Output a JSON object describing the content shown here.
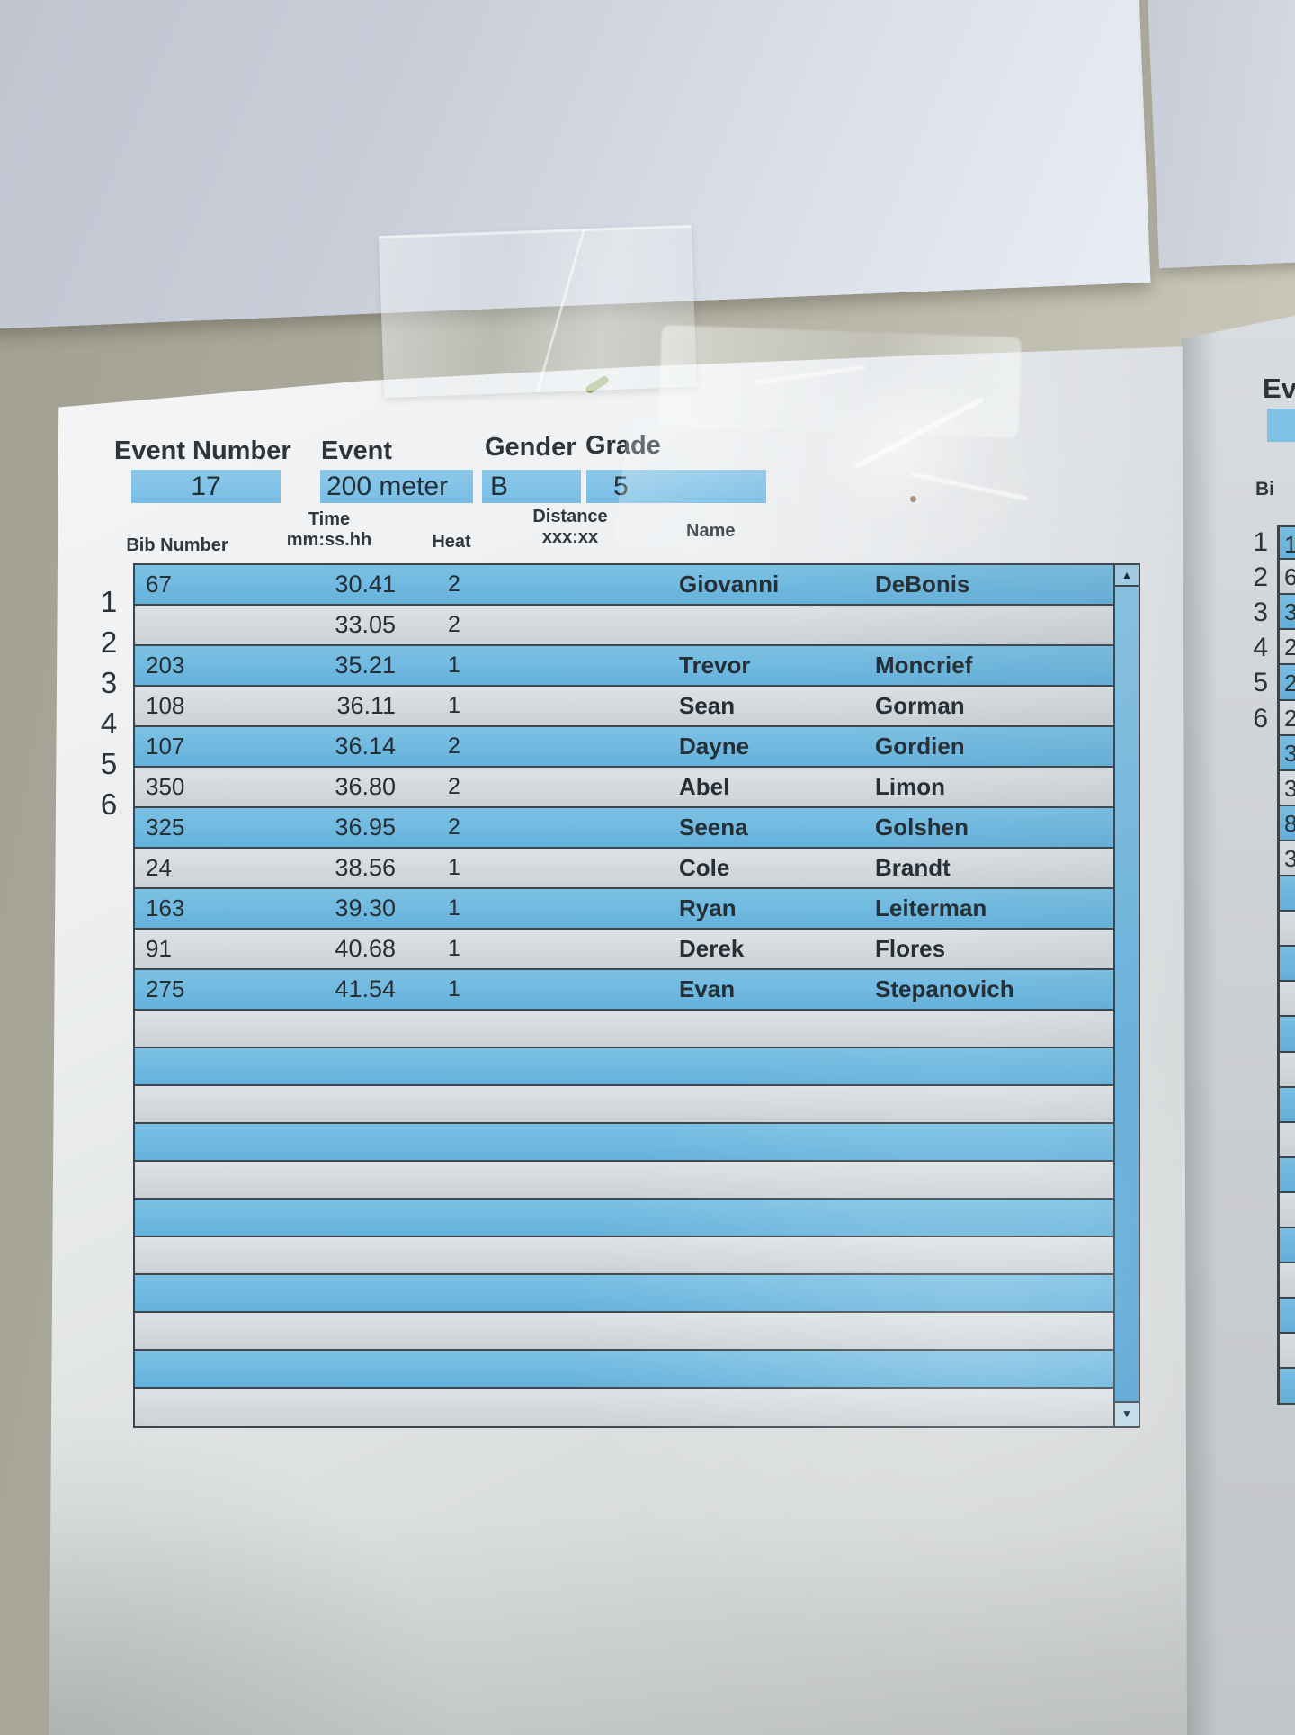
{
  "header": {
    "event_number_label": "Event Number",
    "event_number_value": "17",
    "event_label": "Event",
    "event_value": "200 meter",
    "gender_label": "Gender",
    "gender_value": "B",
    "grade_label": "Grade",
    "grade_value": "5"
  },
  "columns": {
    "bib": "Bib Number",
    "time_line1": "Time",
    "time_line2": "mm:ss.hh",
    "heat": "Heat",
    "distance_line1": "Distance",
    "distance_line2": "xxx:xx",
    "name": "Name"
  },
  "table": {
    "gutter_numbers": [
      "1",
      "2",
      "3",
      "4",
      "5",
      "6"
    ],
    "rows": [
      {
        "bib": "67",
        "time": "30.41",
        "heat": "2",
        "first": "Giovanni",
        "last": "DeBonis",
        "shade": "blue"
      },
      {
        "bib": "",
        "time": "33.05",
        "heat": "2",
        "first": "",
        "last": "",
        "shade": "white"
      },
      {
        "bib": "203",
        "time": "35.21",
        "heat": "1",
        "first": "Trevor",
        "last": "Moncrief",
        "shade": "blue"
      },
      {
        "bib": "108",
        "time": "36.11",
        "heat": "1",
        "first": "Sean",
        "last": "Gorman",
        "shade": "white"
      },
      {
        "bib": "107",
        "time": "36.14",
        "heat": "2",
        "first": "Dayne",
        "last": "Gordien",
        "shade": "blue"
      },
      {
        "bib": "350",
        "time": "36.80",
        "heat": "2",
        "first": "Abel",
        "last": "Limon",
        "shade": "white"
      },
      {
        "bib": "325",
        "time": "36.95",
        "heat": "2",
        "first": "Seena",
        "last": "Golshen",
        "shade": "blue"
      },
      {
        "bib": "24",
        "time": "38.56",
        "heat": "1",
        "first": "Cole",
        "last": "Brandt",
        "shade": "white"
      },
      {
        "bib": "163",
        "time": "39.30",
        "heat": "1",
        "first": "Ryan",
        "last": "Leiterman",
        "shade": "blue"
      },
      {
        "bib": "91",
        "time": "40.68",
        "heat": "1",
        "first": "Derek",
        "last": "Flores",
        "shade": "white"
      },
      {
        "bib": "275",
        "time": "41.54",
        "heat": "1",
        "first": "Evan",
        "last": "Stepanovich",
        "shade": "blue"
      }
    ],
    "empty_row_shades": [
      "white",
      "blue",
      "white",
      "blue",
      "white",
      "blue",
      "white",
      "blue",
      "white",
      "blue",
      "white"
    ]
  },
  "scrollbar": {
    "up_arrow": "▲",
    "down_arrow": "▼"
  },
  "side_sheet": {
    "event_label_partial": "Ev",
    "bib_label_partial": "Bi",
    "gutter_numbers": [
      "1",
      "2",
      "3",
      "4",
      "5",
      "6"
    ],
    "partial_cell_digits": [
      "1",
      "6",
      "3",
      "2",
      "2",
      "2",
      "3",
      "3",
      "8",
      "3"
    ],
    "num_rows": 25
  },
  "colors": {
    "row_blue": "#6fb8e0",
    "row_white": "#d7dce0",
    "header_cell_blue": "#82c4e7",
    "table_border": "#3b454b",
    "ink": "#2b3338",
    "wall": "#b4b2a4",
    "paper": "#eef0f2"
  }
}
